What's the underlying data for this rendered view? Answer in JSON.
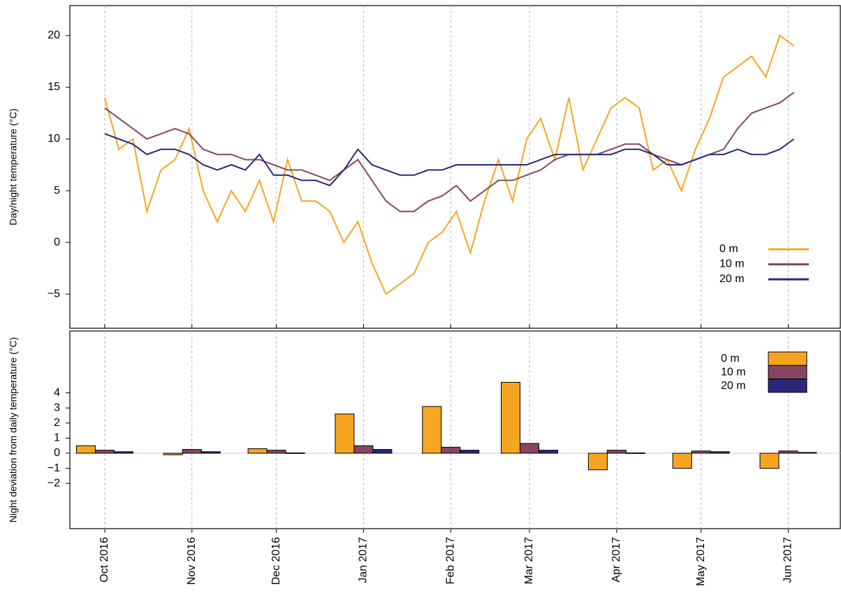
{
  "chart_data": [
    {
      "type": "line",
      "y_label": "Day/night temperature (°C)",
      "x": [
        0,
        5,
        10,
        15,
        20,
        25,
        30,
        35,
        40,
        45,
        50,
        55,
        60,
        65,
        70,
        75,
        80,
        85,
        90,
        95,
        100,
        105,
        110,
        115,
        120,
        125,
        130,
        135,
        140,
        145,
        150,
        155,
        160,
        165,
        170,
        175,
        180,
        185,
        190,
        195,
        200,
        205,
        210,
        215,
        220,
        225,
        230,
        235,
        240,
        245
      ],
      "xlim": [
        -12.4,
        261.5
      ],
      "xticks": [
        0,
        31,
        61,
        92,
        123,
        151,
        182,
        212,
        243
      ],
      "ylim": [
        -8.3,
        22.9
      ],
      "yticks": [
        {
          "value": -5,
          "label": "−5"
        },
        0,
        5,
        10,
        15,
        20
      ],
      "grid": true,
      "legend": "lower right",
      "series": [
        {
          "name": "0 m",
          "color": "#f7a521",
          "values": [
            14,
            9,
            10,
            3,
            7,
            8,
            11,
            5,
            2,
            5,
            3,
            6,
            2,
            8,
            4,
            4,
            3,
            0,
            2,
            -2,
            -5,
            -4,
            -3,
            0,
            1,
            3,
            -1,
            4,
            8,
            4,
            10,
            12,
            8,
            14,
            7,
            10,
            13,
            14,
            13,
            7,
            8,
            5,
            9,
            12,
            16,
            17,
            18,
            16,
            20,
            19
          ]
        },
        {
          "name": "10 m",
          "color": "#874660",
          "values": [
            13,
            12,
            11,
            10,
            10.5,
            11,
            10.5,
            9,
            8.5,
            8.5,
            8,
            8,
            7.5,
            7,
            7,
            6.5,
            6,
            7,
            8,
            6,
            4,
            3,
            3,
            4,
            4.5,
            5.5,
            4,
            5,
            6,
            6,
            6.5,
            7,
            8,
            8.5,
            8.5,
            8.5,
            9,
            9.5,
            9.5,
            8.5,
            8,
            7.5,
            8,
            8.5,
            9,
            11,
            12.5,
            13,
            13.5,
            14.5
          ]
        },
        {
          "name": "20 m",
          "color": "#29287a",
          "values": [
            10.5,
            10,
            9.5,
            8.5,
            9,
            9,
            8.5,
            7.5,
            7,
            7.5,
            7,
            8.5,
            6.5,
            6.5,
            6,
            6,
            5.5,
            7,
            9,
            7.5,
            7,
            6.5,
            6.5,
            7,
            7,
            7.5,
            7.5,
            7.5,
            7.5,
            7.5,
            7.5,
            8,
            8.5,
            8.5,
            8.5,
            8.5,
            8.5,
            9,
            9,
            8.5,
            7.5,
            7.5,
            8,
            8.5,
            8.5,
            9,
            8.5,
            8.5,
            9,
            10
          ]
        }
      ]
    },
    {
      "type": "bar",
      "y_label": "Night deviation from daily temperature (°C)",
      "categories": [
        "Oct 2016",
        "Nov 2016",
        "Dec 2016",
        "Jan 2017",
        "Feb 2017",
        "Mar 2017",
        "Apr 2017",
        "May 2017",
        "Jun 2017"
      ],
      "ylim": [
        -5,
        8.1
      ],
      "yticks": [
        {
          "value": -2,
          "label": "−2"
        },
        {
          "value": -1,
          "label": "−1"
        },
        0,
        1,
        2,
        3,
        4
      ],
      "grid": true,
      "legend": "upper right",
      "series": [
        {
          "name": "0 m",
          "color": "#f7a521",
          "values": [
            0.5,
            -0.1,
            0.3,
            2.6,
            3.1,
            4.7,
            -1.1,
            -1.0,
            -1.0
          ]
        },
        {
          "name": "10 m",
          "color": "#874660",
          "values": [
            0.2,
            0.25,
            0.2,
            0.5,
            0.4,
            0.65,
            0.2,
            0.15,
            0.15
          ]
        },
        {
          "name": "20 m",
          "color": "#29287a",
          "values": [
            0.1,
            0.1,
            0.02,
            0.25,
            0.2,
            0.2,
            0.02,
            0.1,
            0.05
          ]
        }
      ]
    }
  ]
}
